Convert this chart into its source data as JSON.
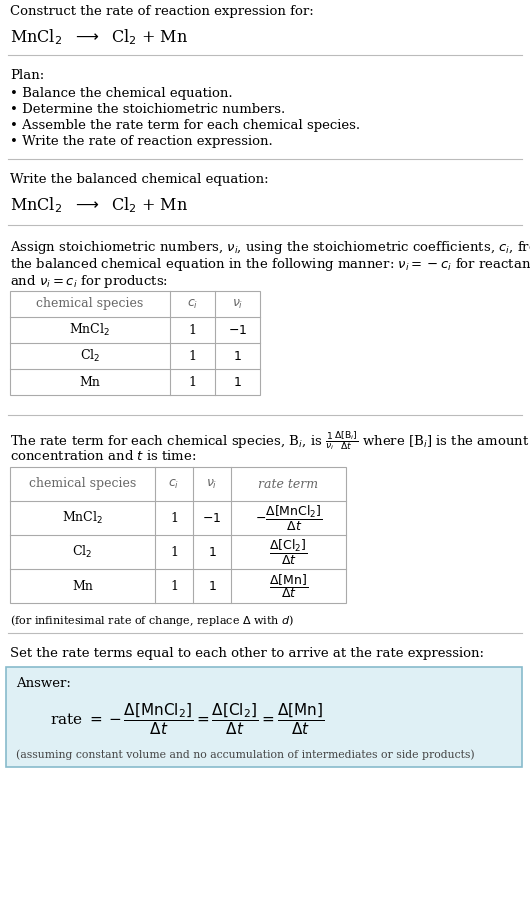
{
  "bg_color": "#ffffff",
  "text_color": "#000000",
  "section1_title": "Construct the rate of reaction expression for:",
  "section2_title": "Plan:",
  "section2_bullets": [
    "• Balance the chemical equation.",
    "• Determine the stoichiometric numbers.",
    "• Assemble the rate term for each chemical species.",
    "• Write the rate of reaction expression."
  ],
  "section3_title": "Write the balanced chemical equation:",
  "table1_headers": [
    "chemical species",
    "$c_i$",
    "$\\nu_i$"
  ],
  "table1_rows": [
    [
      "MnCl$_2$",
      "1",
      "$-1$"
    ],
    [
      "Cl$_2$",
      "1",
      "$1$"
    ],
    [
      "Mn",
      "1",
      "$1$"
    ]
  ],
  "table2_headers": [
    "chemical species",
    "$c_i$",
    "$\\nu_i$",
    "rate term"
  ],
  "table2_rows": [
    [
      "MnCl$_2$",
      "1",
      "$-1$",
      "$-\\dfrac{\\Delta[\\mathrm{MnCl}_2]}{\\Delta t}$"
    ],
    [
      "Cl$_2$",
      "1",
      "$1$",
      "$\\dfrac{\\Delta[\\mathrm{Cl}_2]}{\\Delta t}$"
    ],
    [
      "Mn",
      "1",
      "$1$",
      "$\\dfrac{\\Delta[\\mathrm{Mn}]}{\\Delta t}$"
    ]
  ],
  "section6_title": "Set the rate terms equal to each other to arrive at the rate expression:",
  "answer_label": "Answer:",
  "answer_note": "(assuming constant volume and no accumulation of intermediates or side products)",
  "answer_box_color": "#dff0f5",
  "answer_box_border": "#88bbcc",
  "line_color": "#bbbbbb",
  "table_border_color": "#aaaaaa",
  "header_color": "#666666"
}
